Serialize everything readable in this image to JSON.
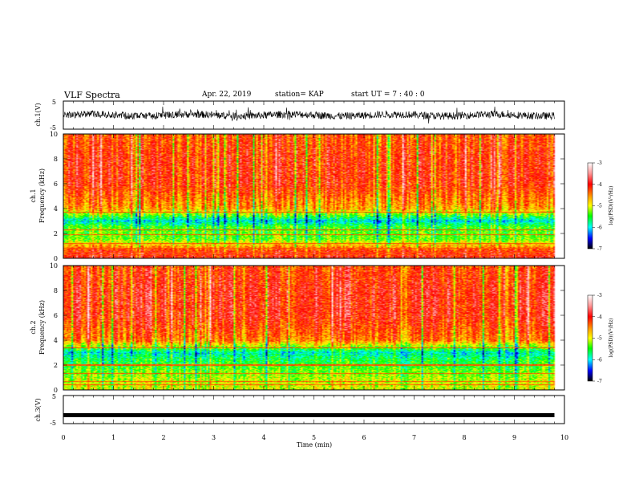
{
  "header": {
    "title": "VLF Spectra",
    "date": "Apr. 22, 2019",
    "station": "station= KAP",
    "start": "start  UT =  7 : 40 : 0"
  },
  "chart_data": [
    {
      "type": "line",
      "panel": "ch1-waveform",
      "ylabel": "ch.1(V)",
      "ylim": [
        -5,
        5
      ],
      "yticks": [
        "5",
        "-5"
      ],
      "xlim": [
        0,
        10
      ],
      "trace": "noisy waveform centred near 0 V, amplitude about ±2 V"
    },
    {
      "type": "heatmap",
      "panel": "ch1-spectrogram",
      "ylabel": "ch.1\nFrequency (kHz)",
      "ylim": [
        0,
        10
      ],
      "yticks": [
        "0",
        "2",
        "4",
        "6",
        "8",
        "10"
      ],
      "xlim": [
        0,
        10
      ],
      "colorbar": {
        "label": "log(PSD)(V²/Hz)",
        "min": -7,
        "max": -3,
        "ticks": [
          "-3",
          "-4",
          "-5",
          "-6",
          "-7"
        ]
      },
      "spectrum_profile": [
        {
          "freq_khz": 0.5,
          "log_psd": -4.0
        },
        {
          "freq_khz": 1.5,
          "log_psd": -5.3
        },
        {
          "freq_khz": 2.5,
          "log_psd": -5.4
        },
        {
          "freq_khz": 3.0,
          "log_psd": -6.0
        },
        {
          "freq_khz": 4.0,
          "log_psd": -4.6
        },
        {
          "freq_khz": 6.0,
          "log_psd": -4.1
        },
        {
          "freq_khz": 8.0,
          "log_psd": -4.1
        },
        {
          "freq_khz": 10.0,
          "log_psd": -4.3
        }
      ],
      "lines_khz": [
        5.6,
        3.7,
        2.3,
        1.9,
        1.2,
        0.8,
        0.5,
        0.3
      ]
    },
    {
      "type": "heatmap",
      "panel": "ch2-spectrogram",
      "ylabel": "ch.2\nFrequency (kHz)",
      "ylim": [
        0,
        10
      ],
      "yticks": [
        "0",
        "2",
        "4",
        "6",
        "8",
        "10"
      ],
      "xlim": [
        0,
        10
      ],
      "colorbar": {
        "label": "log(PSD)(V²/Hz)",
        "min": -7,
        "max": -3,
        "ticks": [
          "-3",
          "-4",
          "-5",
          "-6",
          "-7"
        ]
      },
      "spectrum_profile": [
        {
          "freq_khz": 0.5,
          "log_psd": -5.0
        },
        {
          "freq_khz": 1.5,
          "log_psd": -5.3
        },
        {
          "freq_khz": 2.5,
          "log_psd": -5.6
        },
        {
          "freq_khz": 3.0,
          "log_psd": -5.9
        },
        {
          "freq_khz": 4.0,
          "log_psd": -4.4
        },
        {
          "freq_khz": 6.0,
          "log_psd": -4.0
        },
        {
          "freq_khz": 8.0,
          "log_psd": -4.0
        },
        {
          "freq_khz": 10.0,
          "log_psd": -4.2
        }
      ],
      "lines_khz": [
        3.4,
        2.0,
        1.3,
        0.7,
        0.4
      ]
    },
    {
      "type": "line",
      "panel": "ch3-waveform",
      "ylabel": "ch.3(V)",
      "ylim": [
        -5,
        5
      ],
      "yticks": [
        "5",
        "-5"
      ],
      "xlim": [
        0,
        10
      ],
      "xlabel": "Time (min)",
      "xticks": [
        "0",
        "1",
        "2",
        "3",
        "4",
        "5",
        "6",
        "7",
        "8",
        "9",
        "10"
      ],
      "trace": "flat line near -2 V"
    }
  ]
}
